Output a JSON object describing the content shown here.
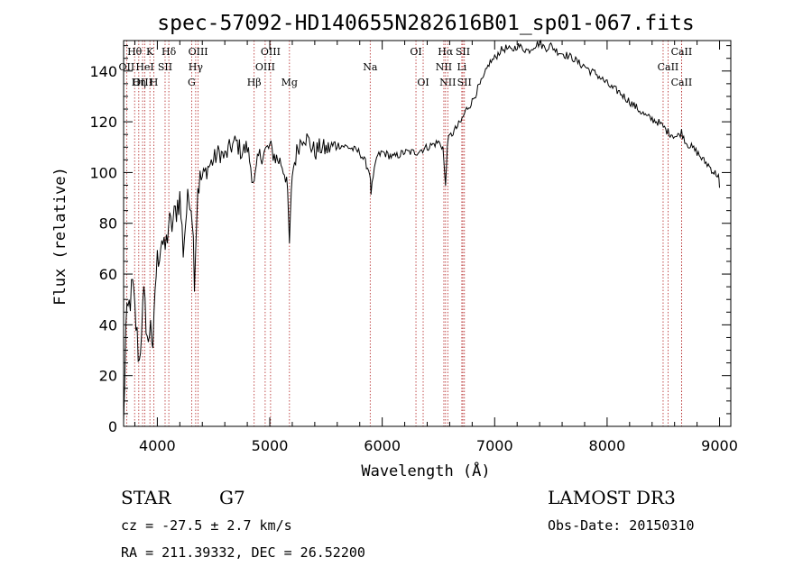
{
  "chart_data": {
    "type": "line",
    "title": "spec-57092-HD140655N282616B01_sp01-067.fits",
    "xlabel": "Wavelength (Å)",
    "ylabel": "Flux (relative)",
    "xlim": [
      3700,
      9100
    ],
    "ylim": [
      0,
      152
    ],
    "xticks": [
      4000,
      5000,
      6000,
      7000,
      8000,
      9000
    ],
    "yticks": [
      0,
      20,
      40,
      60,
      80,
      100,
      120,
      140
    ],
    "grid": false,
    "series": [
      {
        "x": [
          3700,
          3720,
          3740,
          3760,
          3780,
          3800,
          3820,
          3840,
          3860,
          3880,
          3900,
          3920,
          3940,
          3960,
          3980,
          4000,
          4020,
          4040,
          4060,
          4080,
          4100,
          4120,
          4150,
          4180,
          4200,
          4230,
          4260,
          4290,
          4310,
          4330,
          4360,
          4400,
          4450,
          4500,
          4550,
          4600,
          4650,
          4700,
          4750,
          4800,
          4861,
          4900,
          4950,
          5000,
          5050,
          5100,
          5150,
          5175,
          5200,
          5250,
          5300,
          5350,
          5400,
          5450,
          5500,
          5600,
          5700,
          5800,
          5850,
          5890,
          5900,
          5950,
          6000,
          6100,
          6200,
          6300,
          6400,
          6500,
          6540,
          6563,
          6580,
          6600,
          6650,
          6700,
          6750,
          6800,
          6850,
          6900,
          6950,
          7000,
          7050,
          7100,
          7150,
          7200,
          7250,
          7300,
          7350,
          7400,
          7450,
          7500,
          7550,
          7600,
          7650,
          7700,
          7750,
          7800,
          7850,
          7900,
          7950,
          8000,
          8050,
          8100,
          8150,
          8200,
          8250,
          8300,
          8350,
          8400,
          8450,
          8500,
          8542,
          8580,
          8620,
          8662,
          8700,
          8750,
          8800,
          8850,
          8900,
          8950,
          8990,
          9000
        ],
        "y": [
          0,
          38,
          45,
          50,
          55,
          45,
          35,
          25,
          40,
          50,
          42,
          30,
          45,
          25,
          55,
          65,
          70,
          75,
          68,
          72,
          80,
          78,
          82,
          88,
          90,
          70,
          85,
          92,
          85,
          60,
          95,
          98,
          102,
          105,
          108,
          106,
          110,
          112,
          108,
          110,
          95,
          106,
          108,
          110,
          106,
          104,
          98,
          72,
          100,
          110,
          115,
          112,
          108,
          110,
          109,
          111,
          110,
          108,
          104,
          100,
          92,
          106,
          108,
          106,
          108,
          108,
          110,
          112,
          110,
          94,
          112,
          114,
          117,
          120,
          125,
          128,
          133,
          137,
          143,
          145,
          148,
          149,
          148,
          150,
          149,
          148,
          150,
          151,
          149,
          150,
          148,
          147,
          146,
          145,
          143,
          142,
          140,
          139,
          137,
          135,
          133,
          132,
          130,
          128,
          126,
          124,
          122,
          121,
          120,
          118,
          116,
          115,
          114,
          116,
          112,
          110,
          108,
          105,
          103,
          100,
          99,
          94
        ]
      }
    ],
    "lines": [
      {
        "name": "Hθ",
        "x": 3798,
        "row": 1
      },
      {
        "name": "K",
        "x": 3934,
        "row": 1
      },
      {
        "name": "Hδ",
        "x": 4102,
        "row": 1
      },
      {
        "name": "OII",
        "x": 3727,
        "row": 2
      },
      {
        "name": "HeI",
        "x": 3889,
        "row": 2
      },
      {
        "name": "SII",
        "x": 4069,
        "row": 2
      },
      {
        "name": "OIII",
        "x": 3869,
        "row": 3
      },
      {
        "name": "Hη",
        "x": 3835,
        "row": 3
      },
      {
        "name": "H",
        "x": 3969,
        "row": 3
      },
      {
        "name": "OIII",
        "x": 4363,
        "row": 1
      },
      {
        "name": "Hγ",
        "x": 4341,
        "row": 2
      },
      {
        "name": "G",
        "x": 4305,
        "row": 3
      },
      {
        "name": "Hβ",
        "x": 4861,
        "row": 3
      },
      {
        "name": "OIII",
        "x": 5007,
        "row": 1
      },
      {
        "name": "OIII",
        "x": 4959,
        "row": 2
      },
      {
        "name": "Mg",
        "x": 5175,
        "row": 3
      },
      {
        "name": "Na",
        "x": 5893,
        "row": 2
      },
      {
        "name": "OI",
        "x": 6300,
        "row": 1
      },
      {
        "name": "OI",
        "x": 6364,
        "row": 3
      },
      {
        "name": "Hα",
        "x": 6563,
        "row": 1
      },
      {
        "name": "SII",
        "x": 6717,
        "row": 1
      },
      {
        "name": "NII",
        "x": 6548,
        "row": 2
      },
      {
        "name": "Li",
        "x": 6708,
        "row": 2
      },
      {
        "name": "NII",
        "x": 6583,
        "row": 3
      },
      {
        "name": "SII",
        "x": 6731,
        "row": 3
      },
      {
        "name": "CaII",
        "x": 8662,
        "row": 1
      },
      {
        "name": "CaII",
        "x": 8542,
        "row": 2
      },
      {
        "name": "CaII",
        "x": 8662,
        "row": 3
      },
      {
        "name": "",
        "x": 8498,
        "row": 0
      }
    ]
  },
  "info": {
    "object_class": "STAR",
    "subclass": "G7",
    "survey": "LAMOST DR3",
    "redshift": "cz = -27.5 ± 2.7 km/s",
    "obs_date": "Obs-Date: 20150310",
    "coords": "RA = 211.39332, DEC =  26.52200"
  }
}
